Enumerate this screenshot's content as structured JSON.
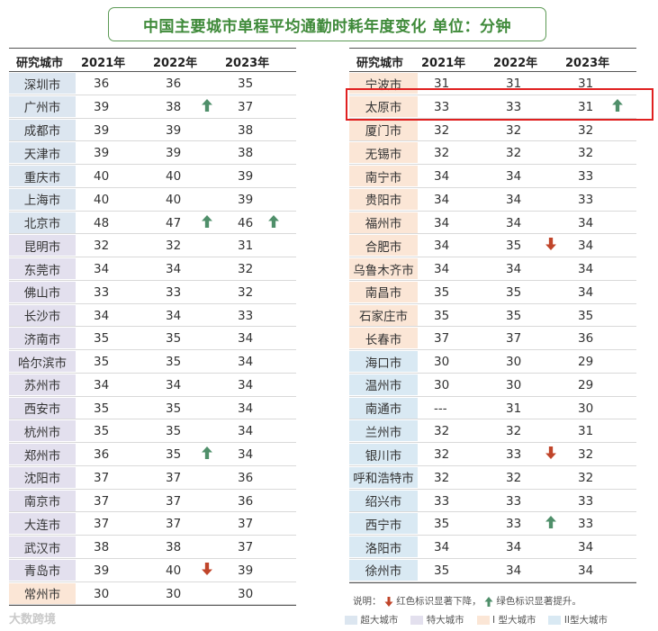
{
  "title": "中国主要城市单程平均通勤时耗年度变化  单位：分钟",
  "headers": [
    "研究城市",
    "2021年",
    "2022年",
    "2023年"
  ],
  "left_rows": [
    {
      "city": "深圳市",
      "type": "super",
      "v2021": "36",
      "v2022": "36",
      "v2023": "35",
      "a2022": "",
      "a2023": ""
    },
    {
      "city": "广州市",
      "type": "super",
      "v2021": "39",
      "v2022": "38",
      "v2023": "37",
      "a2022": "up",
      "a2023": ""
    },
    {
      "city": "成都市",
      "type": "super",
      "v2021": "39",
      "v2022": "39",
      "v2023": "38",
      "a2022": "",
      "a2023": ""
    },
    {
      "city": "天津市",
      "type": "super",
      "v2021": "39",
      "v2022": "39",
      "v2023": "38",
      "a2022": "",
      "a2023": ""
    },
    {
      "city": "重庆市",
      "type": "super",
      "v2021": "40",
      "v2022": "40",
      "v2023": "39",
      "a2022": "",
      "a2023": ""
    },
    {
      "city": "上海市",
      "type": "super",
      "v2021": "40",
      "v2022": "40",
      "v2023": "39",
      "a2022": "",
      "a2023": ""
    },
    {
      "city": "北京市",
      "type": "super",
      "v2021": "48",
      "v2022": "47",
      "v2023": "46",
      "a2022": "up",
      "a2023": "up"
    },
    {
      "city": "昆明市",
      "type": "mega",
      "v2021": "32",
      "v2022": "32",
      "v2023": "31",
      "a2022": "",
      "a2023": ""
    },
    {
      "city": "东莞市",
      "type": "mega",
      "v2021": "34",
      "v2022": "34",
      "v2023": "32",
      "a2022": "",
      "a2023": ""
    },
    {
      "city": "佛山市",
      "type": "mega",
      "v2021": "33",
      "v2022": "33",
      "v2023": "32",
      "a2022": "",
      "a2023": ""
    },
    {
      "city": "长沙市",
      "type": "mega",
      "v2021": "34",
      "v2022": "34",
      "v2023": "33",
      "a2022": "",
      "a2023": ""
    },
    {
      "city": "济南市",
      "type": "mega",
      "v2021": "35",
      "v2022": "35",
      "v2023": "34",
      "a2022": "",
      "a2023": ""
    },
    {
      "city": "哈尔滨市",
      "type": "mega",
      "v2021": "35",
      "v2022": "35",
      "v2023": "34",
      "a2022": "",
      "a2023": ""
    },
    {
      "city": "苏州市",
      "type": "mega",
      "v2021": "34",
      "v2022": "34",
      "v2023": "34",
      "a2022": "",
      "a2023": ""
    },
    {
      "city": "西安市",
      "type": "mega",
      "v2021": "35",
      "v2022": "35",
      "v2023": "34",
      "a2022": "",
      "a2023": ""
    },
    {
      "city": "杭州市",
      "type": "mega",
      "v2021": "35",
      "v2022": "35",
      "v2023": "34",
      "a2022": "",
      "a2023": ""
    },
    {
      "city": "郑州市",
      "type": "mega",
      "v2021": "36",
      "v2022": "35",
      "v2023": "34",
      "a2022": "up",
      "a2023": ""
    },
    {
      "city": "沈阳市",
      "type": "mega",
      "v2021": "37",
      "v2022": "37",
      "v2023": "36",
      "a2022": "",
      "a2023": ""
    },
    {
      "city": "南京市",
      "type": "mega",
      "v2021": "37",
      "v2022": "37",
      "v2023": "36",
      "a2022": "",
      "a2023": ""
    },
    {
      "city": "大连市",
      "type": "mega",
      "v2021": "37",
      "v2022": "37",
      "v2023": "37",
      "a2022": "",
      "a2023": ""
    },
    {
      "city": "武汉市",
      "type": "mega",
      "v2021": "38",
      "v2022": "38",
      "v2023": "37",
      "a2022": "",
      "a2023": ""
    },
    {
      "city": "青岛市",
      "type": "mega",
      "v2021": "39",
      "v2022": "40",
      "v2023": "39",
      "a2022": "down",
      "a2023": ""
    },
    {
      "city": "常州市",
      "type": "one",
      "v2021": "30",
      "v2022": "30",
      "v2023": "30",
      "a2022": "",
      "a2023": ""
    }
  ],
  "right_rows": [
    {
      "city": "宁波市",
      "type": "one",
      "v2021": "31",
      "v2022": "31",
      "v2023": "31",
      "a2022": "",
      "a2023": ""
    },
    {
      "city": "太原市",
      "type": "one",
      "v2021": "33",
      "v2022": "33",
      "v2023": "31",
      "a2022": "",
      "a2023": "up"
    },
    {
      "city": "厦门市",
      "type": "one",
      "v2021": "32",
      "v2022": "32",
      "v2023": "32",
      "a2022": "",
      "a2023": ""
    },
    {
      "city": "无锡市",
      "type": "one",
      "v2021": "32",
      "v2022": "32",
      "v2023": "32",
      "a2022": "",
      "a2023": ""
    },
    {
      "city": "南宁市",
      "type": "one",
      "v2021": "34",
      "v2022": "34",
      "v2023": "33",
      "a2022": "",
      "a2023": ""
    },
    {
      "city": "贵阳市",
      "type": "one",
      "v2021": "34",
      "v2022": "34",
      "v2023": "33",
      "a2022": "",
      "a2023": ""
    },
    {
      "city": "福州市",
      "type": "one",
      "v2021": "34",
      "v2022": "34",
      "v2023": "34",
      "a2022": "",
      "a2023": ""
    },
    {
      "city": "合肥市",
      "type": "one",
      "v2021": "34",
      "v2022": "35",
      "v2023": "34",
      "a2022": "down",
      "a2023": ""
    },
    {
      "city": "乌鲁木齐市",
      "type": "one",
      "v2021": "34",
      "v2022": "34",
      "v2023": "34",
      "a2022": "",
      "a2023": ""
    },
    {
      "city": "南昌市",
      "type": "one",
      "v2021": "35",
      "v2022": "35",
      "v2023": "34",
      "a2022": "",
      "a2023": ""
    },
    {
      "city": "石家庄市",
      "type": "one",
      "v2021": "35",
      "v2022": "35",
      "v2023": "35",
      "a2022": "",
      "a2023": ""
    },
    {
      "city": "长春市",
      "type": "one",
      "v2021": "37",
      "v2022": "37",
      "v2023": "36",
      "a2022": "",
      "a2023": ""
    },
    {
      "city": "海口市",
      "type": "two",
      "v2021": "30",
      "v2022": "30",
      "v2023": "29",
      "a2022": "",
      "a2023": ""
    },
    {
      "city": "温州市",
      "type": "two",
      "v2021": "30",
      "v2022": "30",
      "v2023": "29",
      "a2022": "",
      "a2023": ""
    },
    {
      "city": "南通市",
      "type": "two",
      "v2021": "---",
      "v2022": "31",
      "v2023": "30",
      "a2022": "",
      "a2023": ""
    },
    {
      "city": "兰州市",
      "type": "two",
      "v2021": "32",
      "v2022": "32",
      "v2023": "31",
      "a2022": "",
      "a2023": ""
    },
    {
      "city": "银川市",
      "type": "two",
      "v2021": "32",
      "v2022": "33",
      "v2023": "32",
      "a2022": "down",
      "a2023": ""
    },
    {
      "city": "呼和浩特市",
      "type": "two",
      "v2021": "32",
      "v2022": "32",
      "v2023": "32",
      "a2022": "",
      "a2023": ""
    },
    {
      "city": "绍兴市",
      "type": "two",
      "v2021": "33",
      "v2022": "33",
      "v2023": "33",
      "a2022": "",
      "a2023": ""
    },
    {
      "city": "西宁市",
      "type": "two",
      "v2021": "35",
      "v2022": "33",
      "v2023": "33",
      "a2022": "up",
      "a2023": ""
    },
    {
      "city": "洛阳市",
      "type": "two",
      "v2021": "34",
      "v2022": "34",
      "v2023": "34",
      "a2022": "",
      "a2023": ""
    },
    {
      "city": "徐州市",
      "type": "two",
      "v2021": "35",
      "v2022": "34",
      "v2023": "34",
      "a2022": "",
      "a2023": ""
    }
  ],
  "highlighted_city": "太原市",
  "note": {
    "prefix": "说明：",
    "red_text": "红色标识显著下降，",
    "green_text": "绿色标识显著提升。"
  },
  "legend": [
    {
      "label": "超大城市",
      "color": "#dce6f0"
    },
    {
      "label": "特大城市",
      "color": "#e3e0ee"
    },
    {
      "label": "I 型大城市",
      "color": "#fbe6d6"
    },
    {
      "label": "II型大城市",
      "color": "#d9e9f3"
    }
  ],
  "colors": {
    "up_arrow": "#4f8f6a",
    "down_arrow": "#c0452a",
    "title_green": "#3f8a3a",
    "highlight_red": "#e02020"
  },
  "watermark": "大数跨境"
}
